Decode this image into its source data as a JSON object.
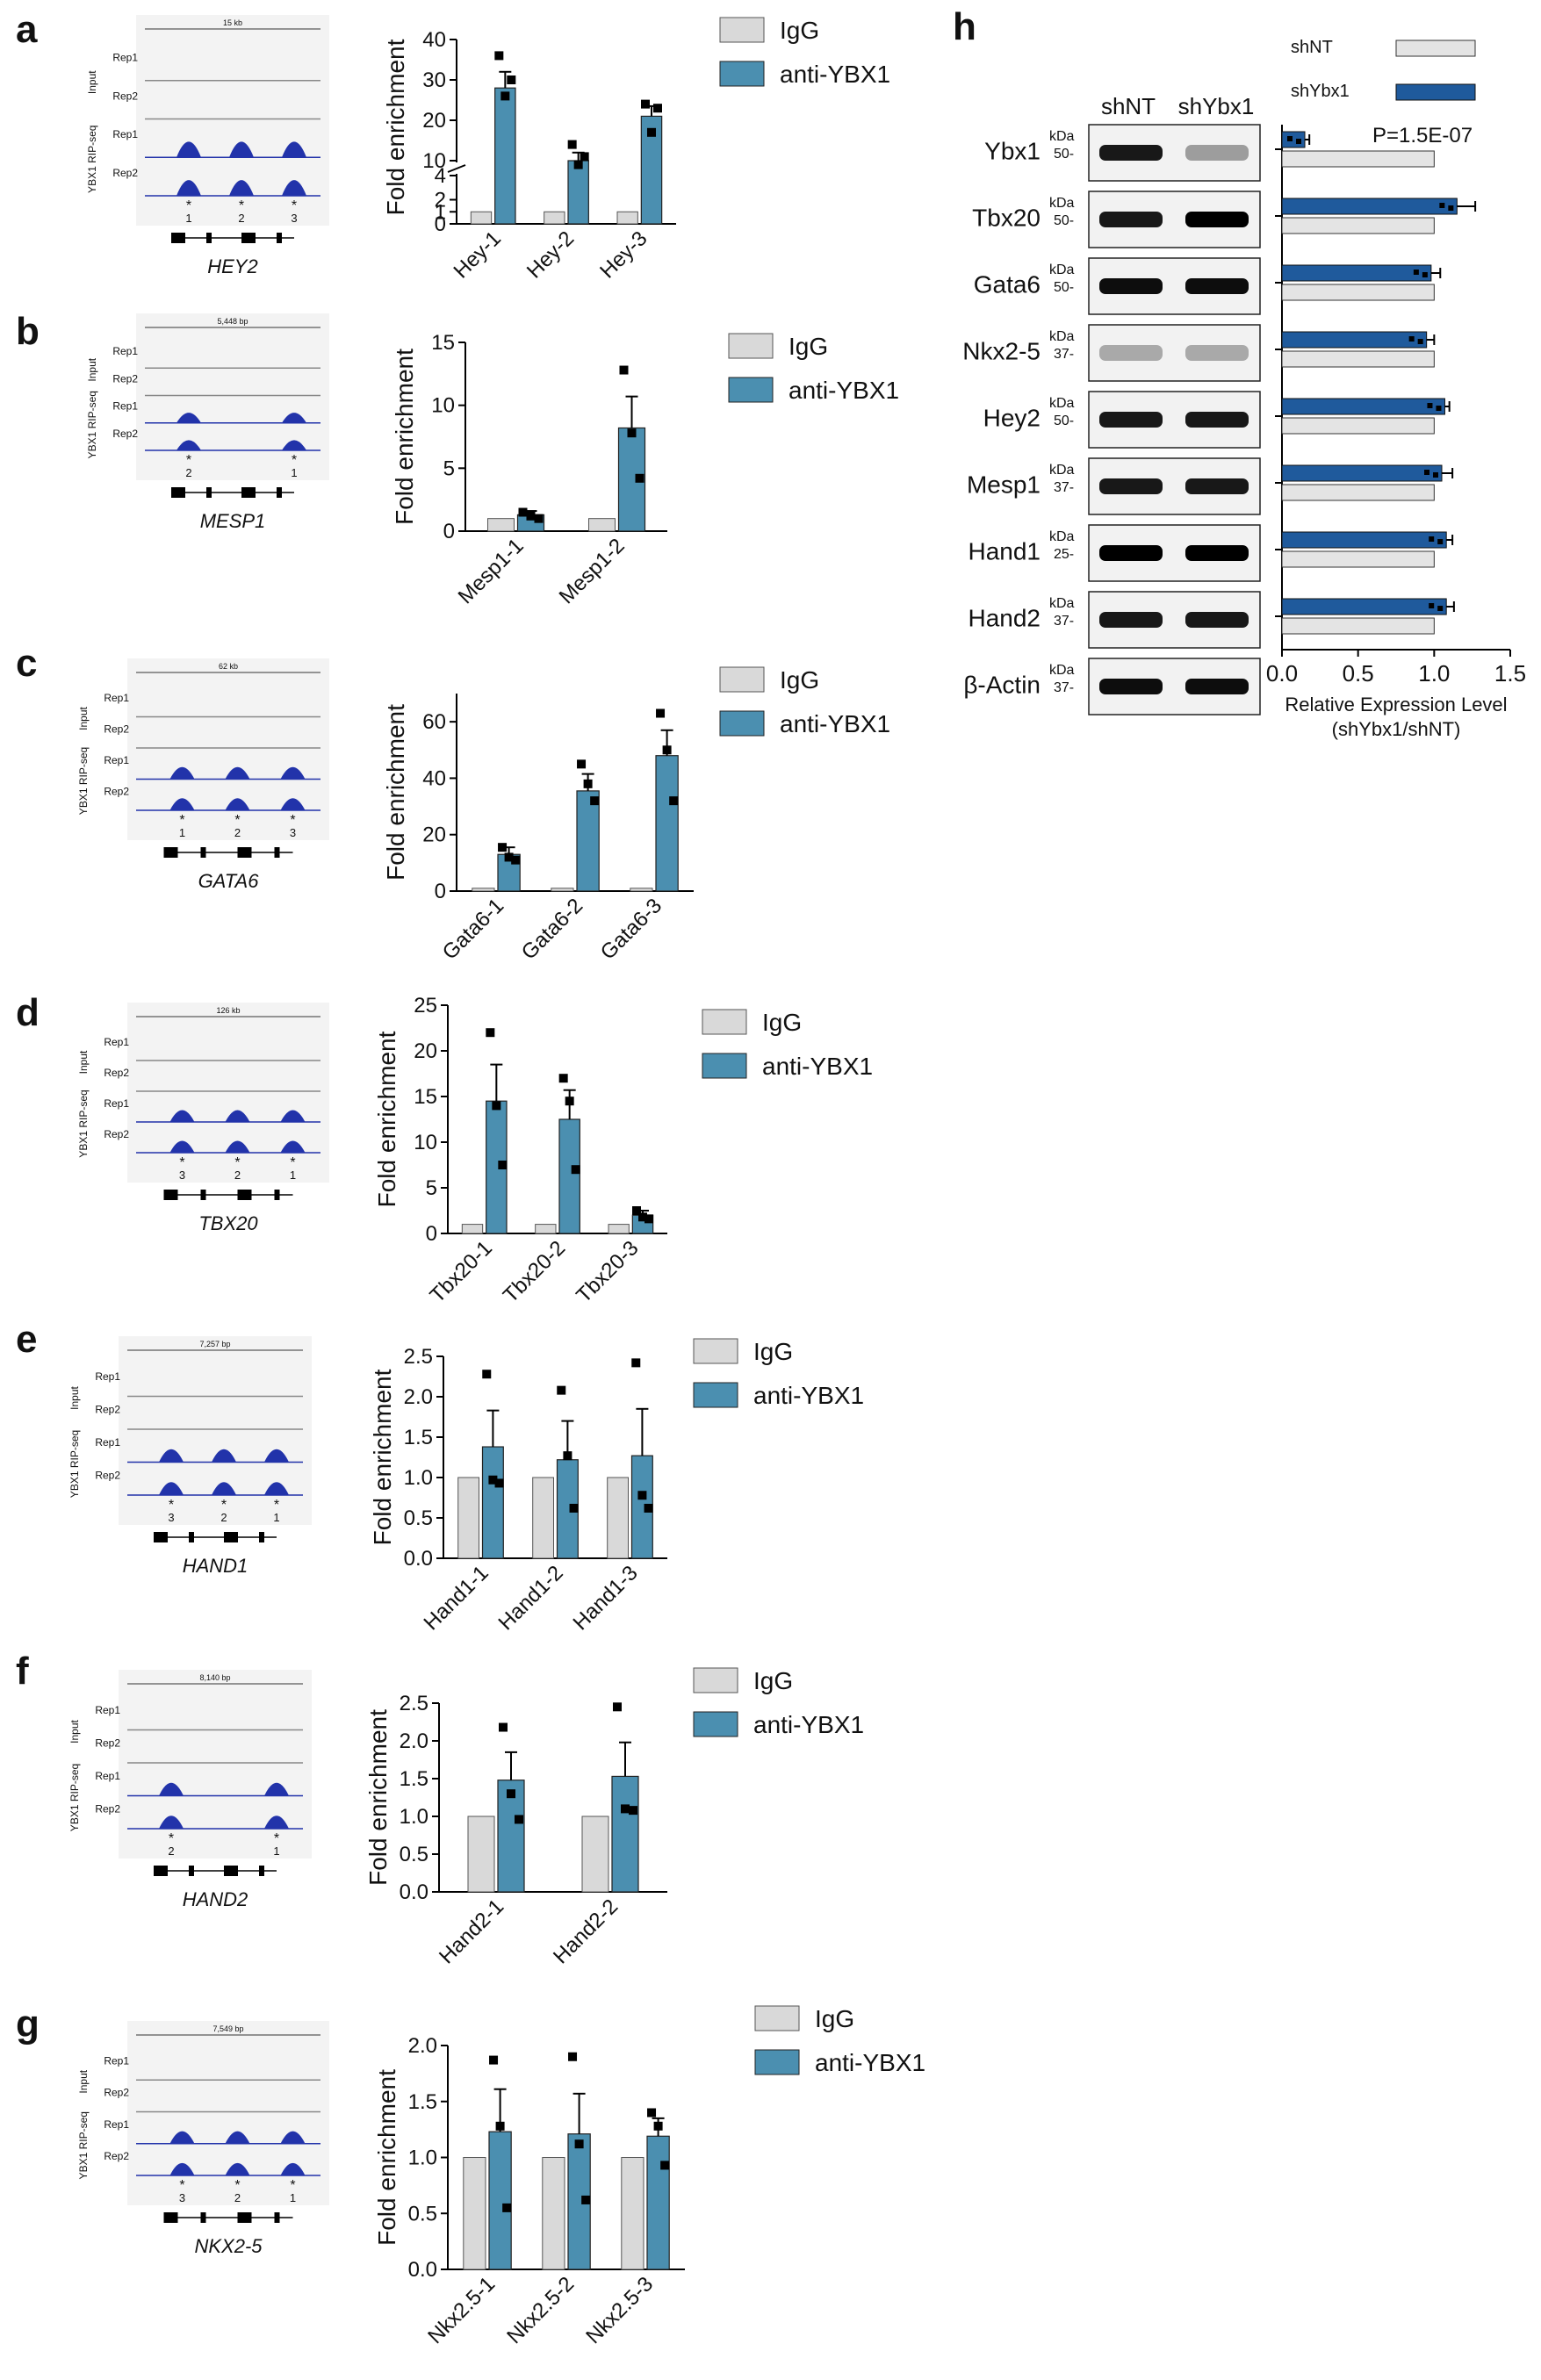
{
  "legend": {
    "igg": "IgG",
    "anti": "anti-YBX1"
  },
  "colors": {
    "igg": "#d9d9d9",
    "anti": "#4b8fb0",
    "shnt": "#e4e4e4",
    "shybx1": "#1f5a9c",
    "track": "#2233aa"
  },
  "track_labels": {
    "input": "Input",
    "rip": "YBX1 RIP-seq",
    "rep1": "Rep1",
    "rep2": "Rep2"
  },
  "panels": [
    {
      "letter": "a",
      "gene": "HEY2",
      "scale": "15 kb",
      "ylabel": "Fold enrichment",
      "stars": [
        "1",
        "2",
        "3"
      ],
      "chart_data": {
        "type": "bar",
        "categories": [
          "Hey-1",
          "Hey-2",
          "Hey-3"
        ],
        "series": [
          {
            "name": "IgG",
            "values": [
              1,
              1,
              1
            ]
          },
          {
            "name": "anti-YBX1",
            "values": [
              28,
              10,
              21
            ],
            "err": [
              4,
              2,
              2.5
            ],
            "points": [
              [
                36,
                26,
                30
              ],
              [
                14,
                9,
                11
              ],
              [
                24,
                17,
                23
              ]
            ]
          }
        ],
        "ylabel": "Fold enrichment",
        "broken_axis": true,
        "lower_ticks": [
          0,
          1,
          2,
          4
        ],
        "upper_ticks": [
          10,
          20,
          30,
          40
        ]
      }
    },
    {
      "letter": "b",
      "gene": "MESP1",
      "scale": "5,448 bp",
      "ylabel": "Fold enrichment",
      "stars": [
        "2",
        "1"
      ],
      "chart_data": {
        "type": "bar",
        "categories": [
          "Mesp1-1",
          "Mesp1-2"
        ],
        "series": [
          {
            "name": "IgG",
            "values": [
              1,
              1
            ]
          },
          {
            "name": "anti-YBX1",
            "values": [
              1.3,
              8.2
            ],
            "err": [
              0.3,
              2.5
            ],
            "points": [
              [
                1.5,
                1.2,
                1.0
              ],
              [
                12.8,
                7.8,
                4.2
              ]
            ]
          }
        ],
        "ylabel": "Fold enrichment",
        "ylim": [
          0,
          15
        ],
        "ticks": [
          0,
          5,
          10,
          15
        ]
      }
    },
    {
      "letter": "c",
      "gene": "GATA6",
      "scale": "62 kb",
      "ylabel": "Fold enrichment",
      "stars": [
        "1",
        "2",
        "3"
      ],
      "chart_data": {
        "type": "bar",
        "categories": [
          "Gata6-1",
          "Gata6-2",
          "Gata6-3"
        ],
        "series": [
          {
            "name": "IgG",
            "values": [
              1,
              1,
              1
            ]
          },
          {
            "name": "anti-YBX1",
            "values": [
              13,
              35.5,
              48
            ],
            "err": [
              2.5,
              6,
              9
            ],
            "points": [
              [
                15.5,
                12,
                11
              ],
              [
                45,
                38,
                32
              ],
              [
                63,
                50,
                32
              ]
            ]
          }
        ],
        "ylabel": "Fold enrichment",
        "ylim": [
          0,
          70
        ],
        "ticks": [
          0,
          20,
          40,
          60
        ]
      }
    },
    {
      "letter": "d",
      "gene": "TBX20",
      "scale": "126 kb",
      "ylabel": "Fold enrichment",
      "stars": [
        "3",
        "2",
        "1"
      ],
      "chart_data": {
        "type": "bar",
        "categories": [
          "Tbx20-1",
          "Tbx20-2",
          "Tbx20-3"
        ],
        "series": [
          {
            "name": "IgG",
            "values": [
              1,
              1,
              1
            ]
          },
          {
            "name": "anti-YBX1",
            "values": [
              14.5,
              12.5,
              2
            ],
            "err": [
              4,
              3.2,
              0.5
            ],
            "points": [
              [
                22,
                14,
                7.5
              ],
              [
                17,
                14.5,
                7
              ],
              [
                2.5,
                1.8,
                1.6
              ]
            ]
          }
        ],
        "ylabel": "Fold enrichment",
        "ylim": [
          0,
          25
        ],
        "ticks": [
          0,
          5,
          10,
          15,
          20,
          25
        ]
      }
    },
    {
      "letter": "e",
      "gene": "HAND1",
      "scale": "7,257 bp",
      "ylabel": "Fold enrichment",
      "stars": [
        "3",
        "2",
        "1"
      ],
      "chart_data": {
        "type": "bar",
        "categories": [
          "Hand1-1",
          "Hand1-2",
          "Hand1-3"
        ],
        "series": [
          {
            "name": "IgG",
            "values": [
              1,
              1,
              1
            ]
          },
          {
            "name": "anti-YBX1",
            "values": [
              1.38,
              1.22,
              1.27
            ],
            "err": [
              0.45,
              0.48,
              0.58
            ],
            "points": [
              [
                2.28,
                0.97,
                0.93
              ],
              [
                2.08,
                1.27,
                0.62
              ],
              [
                2.42,
                0.78,
                0.62
              ]
            ]
          }
        ],
        "ylabel": "Fold enrichment",
        "ylim": [
          0,
          2.5
        ],
        "ticks": [
          "0.0",
          "0.5",
          "1.0",
          "1.5",
          "2.0",
          "2.5"
        ]
      }
    },
    {
      "letter": "f",
      "gene": "HAND2",
      "scale": "8,140 bp",
      "ylabel": "Fold enrichment",
      "stars": [
        "2",
        "1"
      ],
      "chart_data": {
        "type": "bar",
        "categories": [
          "Hand2-1",
          "Hand2-2"
        ],
        "series": [
          {
            "name": "IgG",
            "values": [
              1,
              1
            ]
          },
          {
            "name": "anti-YBX1",
            "values": [
              1.48,
              1.53
            ],
            "err": [
              0.37,
              0.45
            ],
            "points": [
              [
                2.18,
                1.3,
                0.96
              ],
              [
                2.45,
                1.1,
                1.08
              ]
            ]
          }
        ],
        "ylabel": "Fold enrichment",
        "ylim": [
          0,
          2.5
        ],
        "ticks": [
          "0.0",
          "0.5",
          "1.0",
          "1.5",
          "2.0",
          "2.5"
        ]
      }
    },
    {
      "letter": "g",
      "gene": "NKX2-5",
      "scale": "7,549 bp",
      "ylabel": "Fold enrichment",
      "stars": [
        "3",
        "2",
        "1"
      ],
      "chart_data": {
        "type": "bar",
        "categories": [
          "Nkx2.5-1",
          "Nkx2.5-2",
          "Nkx2.5-3"
        ],
        "series": [
          {
            "name": "IgG",
            "values": [
              1,
              1,
              1
            ]
          },
          {
            "name": "anti-YBX1",
            "values": [
              1.23,
              1.21,
              1.19
            ],
            "err": [
              0.38,
              0.36,
              0.16
            ],
            "points": [
              [
                1.87,
                1.28,
                0.55
              ],
              [
                1.9,
                1.12,
                0.62
              ],
              [
                1.4,
                1.28,
                0.93
              ]
            ]
          }
        ],
        "ylabel": "Fold enrichment",
        "ylim": [
          0,
          2.0
        ],
        "ticks": [
          "0.0",
          "0.5",
          "1.0",
          "1.5",
          "2.0"
        ]
      }
    }
  ],
  "panel_h": {
    "letter": "h",
    "lanes": [
      "shNT",
      "shYbx1"
    ],
    "legend": {
      "shnt": "shNT",
      "shybx1": "shYbx1"
    },
    "pvalue": "P=1.5E-07",
    "kda": "kDa",
    "blots": [
      {
        "name": "Ybx1",
        "marker": "50-"
      },
      {
        "name": "Tbx20",
        "marker": "50-"
      },
      {
        "name": "Gata6",
        "marker": "50-"
      },
      {
        "name": "Nkx2-5",
        "marker": "37-"
      },
      {
        "name": "Hey2",
        "marker": "50-"
      },
      {
        "name": "Mesp1",
        "marker": "37-"
      },
      {
        "name": "Hand1",
        "marker": "25-"
      },
      {
        "name": "Hand2",
        "marker": "37-"
      },
      {
        "name": "β-Actin",
        "marker": "37-"
      }
    ],
    "chart_data": {
      "type": "bar",
      "orientation": "horizontal",
      "categories": [
        "Ybx1",
        "Tbx20",
        "Gata6",
        "Nkx2-5",
        "Hey2",
        "Mesp1",
        "Hand1",
        "Hand2"
      ],
      "series": [
        {
          "name": "shNT",
          "values": [
            1,
            1,
            1,
            1,
            1,
            1,
            1,
            1
          ]
        },
        {
          "name": "shYbx1",
          "values": [
            0.15,
            1.15,
            0.98,
            0.95,
            1.07,
            1.05,
            1.08,
            1.08
          ],
          "err": [
            0.03,
            0.12,
            0.06,
            0.05,
            0.03,
            0.07,
            0.04,
            0.05
          ]
        }
      ],
      "xlabel": "Relative Expression Level (shYbx1/shNT)",
      "xlim": [
        0,
        1.5
      ],
      "ticks": [
        "0.0",
        "0.5",
        "1.0",
        "1.5"
      ]
    }
  }
}
